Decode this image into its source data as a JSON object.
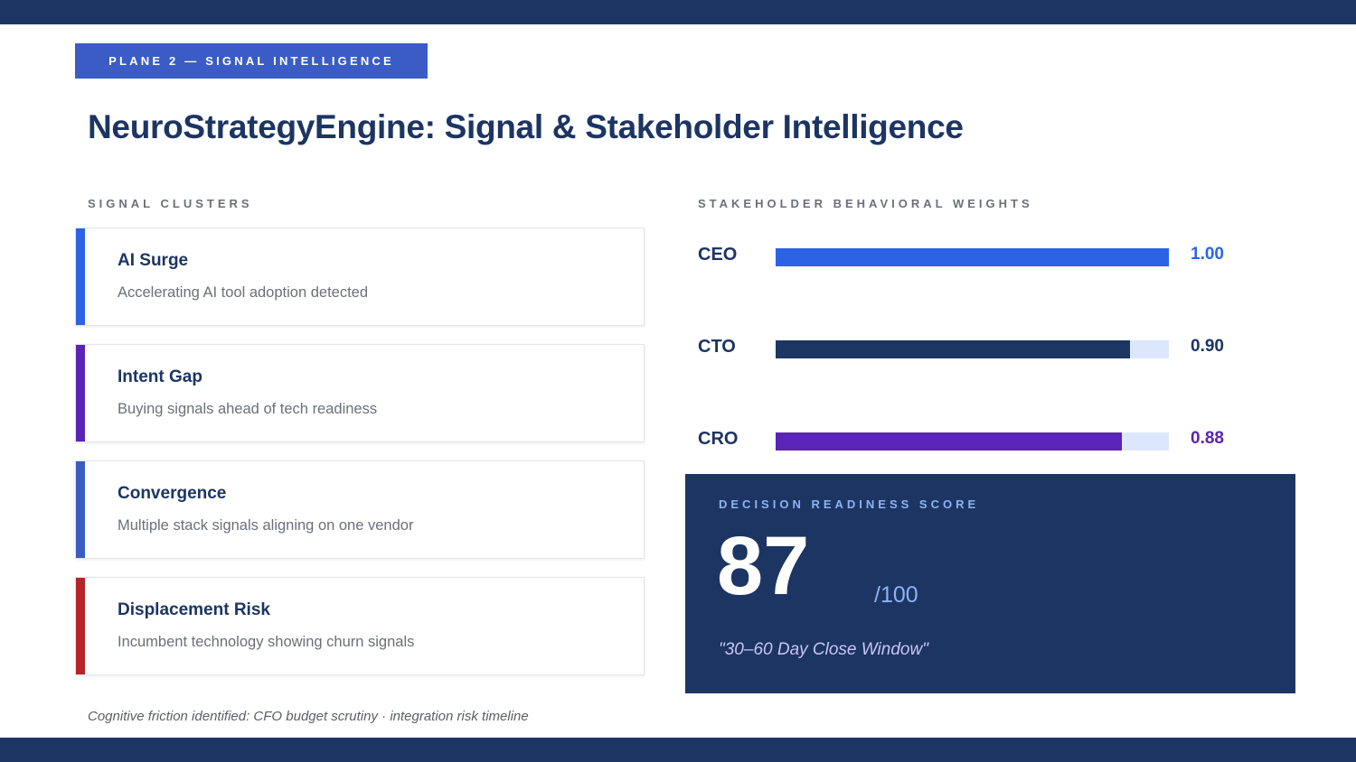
{
  "header": {
    "plane_badge": "PLANE 2 — SIGNAL INTELLIGENCE",
    "title": "NeuroStrategyEngine: Signal & Stakeholder Intelligence"
  },
  "signal_clusters": {
    "label": "SIGNAL CLUSTERS",
    "items": [
      {
        "title": "AI Surge",
        "description": "Accelerating AI tool adoption detected",
        "accent_color": "#2b63e4"
      },
      {
        "title": "Intent Gap",
        "description": "Buying signals ahead of tech readiness",
        "accent_color": "#5a24b6"
      },
      {
        "title": "Convergence",
        "description": "Multiple stack signals aligning on one vendor",
        "accent_color": "#3a5cc4"
      },
      {
        "title": "Displacement Risk",
        "description": "Incumbent technology showing churn signals",
        "accent_color": "#b8222a"
      }
    ]
  },
  "footnote": "Cognitive friction identified: CFO budget scrutiny · integration risk timeline",
  "stakeholders": {
    "label": "STAKEHOLDER BEHAVIORAL WEIGHTS",
    "items": [
      {
        "role": "CEO",
        "weight": 1.0,
        "weight_label": "1.00",
        "color": "#2b63e4"
      },
      {
        "role": "CTO",
        "weight": 0.9,
        "weight_label": "0.90",
        "color": "#1c3563"
      },
      {
        "role": "CRO",
        "weight": 0.88,
        "weight_label": "0.88",
        "color": "#5a24b6"
      }
    ]
  },
  "readiness": {
    "label": "DECISION READINESS SCORE",
    "score": "87",
    "max": "/100",
    "quote": "\"30–60 Day Close Window\""
  }
}
